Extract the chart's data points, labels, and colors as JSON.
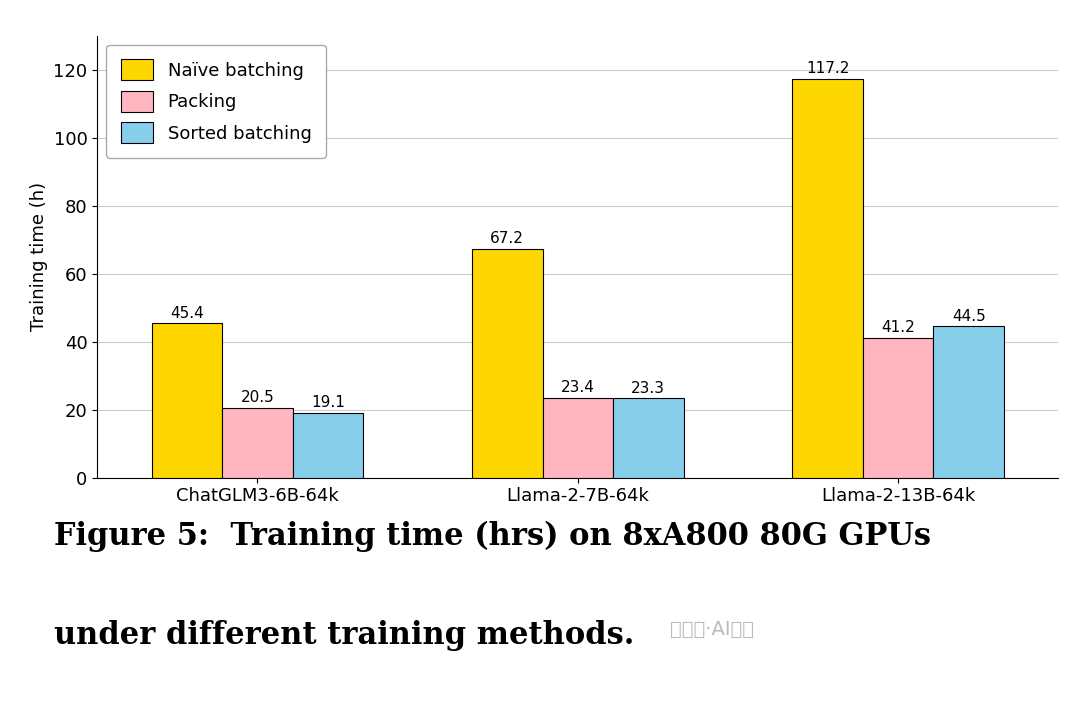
{
  "categories": [
    "ChatGLM3-6B-64k",
    "Llama-2-7B-64k",
    "Llama-2-13B-64k"
  ],
  "series": {
    "Naïve batching": [
      45.4,
      67.2,
      117.2
    ],
    "Packing": [
      20.5,
      23.4,
      41.2
    ],
    "Sorted batching": [
      19.1,
      23.3,
      44.5
    ]
  },
  "colors": {
    "Naïve batching": "#FFD700",
    "Packing": "#FFB6C1",
    "Sorted batching": "#87CEEB"
  },
  "ylabel": "Training time (h)",
  "ylim": [
    0,
    130
  ],
  "yticks": [
    0,
    20,
    40,
    60,
    80,
    100,
    120
  ],
  "bar_width": 0.22,
  "legend_loc": "upper left",
  "label_fontsize": 13,
  "tick_fontsize": 13,
  "legend_fontsize": 13,
  "value_label_fontsize": 11,
  "caption_line1": "Figure 5:  Training time (hrs) on 8xA800 80G GPUs",
  "caption_line2": "under different training methods.",
  "background_color": "#ffffff",
  "plot_bg_color": "#ffffff",
  "grid_color": "#cccccc",
  "border_color": "#000000"
}
